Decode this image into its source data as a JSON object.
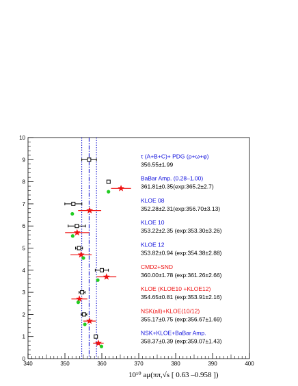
{
  "chart_data": {
    "type": "scatter",
    "title": "",
    "xlabel": "10¹⁰ aμ(ππ,√s [ 0.63 –0.958 ])",
    "ylabel": "",
    "xlim": [
      340,
      400
    ],
    "ylim": [
      0,
      10
    ],
    "x_ticks": [
      "340",
      "350",
      "360",
      "370",
      "380",
      "390",
      "400"
    ],
    "y_ticks": [
      "0",
      "1",
      "2",
      "3",
      "4",
      "5",
      "6",
      "7",
      "8",
      "9",
      "10"
    ],
    "grid": false,
    "reference_lines": [
      {
        "x": 354.56,
        "style": "dotted",
        "color": "#0000cc"
      },
      {
        "x": 356.55,
        "style": "dashdot",
        "color": "#0000cc"
      },
      {
        "x": 358.54,
        "style": "dotted",
        "color": "#0000cc"
      }
    ],
    "series": [
      {
        "marker": "open-square",
        "color": "#000000",
        "points": [
          {
            "y": 9.0,
            "x": 356.55,
            "err": 1.99
          },
          {
            "y": 8.0,
            "x": 361.81,
            "err": 0.35
          },
          {
            "y": 7.0,
            "x": 352.28,
            "err": 2.31
          },
          {
            "y": 6.0,
            "x": 353.22,
            "err": 2.35
          },
          {
            "y": 5.0,
            "x": 353.82,
            "err": 0.94
          },
          {
            "y": 4.0,
            "x": 360.0,
            "err": 1.78
          },
          {
            "y": 3.0,
            "x": 354.65,
            "err": 0.81
          },
          {
            "y": 2.0,
            "x": 355.17,
            "err": 0.75
          },
          {
            "y": 1.0,
            "x": 358.37,
            "err": 0.39
          }
        ]
      },
      {
        "marker": "star",
        "color": "#ee1111",
        "points": [
          {
            "y": 7.7,
            "x": 365.2,
            "err": 2.7
          },
          {
            "y": 6.7,
            "x": 356.7,
            "err": 3.13
          },
          {
            "y": 5.7,
            "x": 353.3,
            "err": 3.26
          },
          {
            "y": 4.7,
            "x": 354.38,
            "err": 2.88
          },
          {
            "y": 3.7,
            "x": 361.26,
            "err": 2.66
          },
          {
            "y": 2.7,
            "x": 353.91,
            "err": 2.16
          },
          {
            "y": 1.7,
            "x": 356.67,
            "err": 1.69
          },
          {
            "y": 0.7,
            "x": 359.07,
            "err": 1.43
          }
        ]
      },
      {
        "marker": "circle",
        "color": "#22cc22",
        "points": [
          {
            "y": 7.55,
            "x": 361.8
          },
          {
            "y": 6.55,
            "x": 352.0
          },
          {
            "y": 5.55,
            "x": 352.1
          },
          {
            "y": 4.55,
            "x": 355.0
          },
          {
            "y": 3.55,
            "x": 358.9
          },
          {
            "y": 2.55,
            "x": 353.6
          },
          {
            "y": 1.55,
            "x": 355.4
          },
          {
            "y": 0.55,
            "x": 359.9
          }
        ]
      }
    ],
    "annotations": [
      {
        "y": 9.0,
        "label": "τ (A+B+C)+ PDG (ρ+ω+φ)",
        "label_color": "#1010dd",
        "value": "356.55±1.99"
      },
      {
        "y": 8.0,
        "label": "BaBar Amp. (0.28–1.00)",
        "label_color": "#1010dd",
        "value": "361.81±0.35(exp:365.2±2.7)"
      },
      {
        "y": 7.0,
        "label": "KLOE 08",
        "label_color": "#1010dd",
        "value": "352.28±2.31(exp:356.70±3.13)"
      },
      {
        "y": 6.0,
        "label": "KLOE 10",
        "label_color": "#1010dd",
        "value": "353.22±2.35 (exp:353.30±3.26)"
      },
      {
        "y": 5.0,
        "label": "KLOE 12",
        "label_color": "#1010dd",
        "value": "353.82±0.94 (exp:354.38±2.88)"
      },
      {
        "y": 4.0,
        "label": "CMD2+SND",
        "label_color": "#ee1111",
        "value": "360.00±1.78 (exp:361.26±2.66)"
      },
      {
        "y": 3.0,
        "label": "KLOE (KLOE10 +KLOE12)",
        "label_color": "#ee1111",
        "value": "354.65±0.81 (exp:353.91±2.16)"
      },
      {
        "y": 2.0,
        "label": "NSK(all)+KLOE(10/12)",
        "label_color": "#ee1111",
        "value": "355.17±0.75 (exp:356.67±1.69)"
      },
      {
        "y": 1.0,
        "label": "NSK+KLOE+BaBar Amp.",
        "label_color": "#1010dd",
        "value": "358.37±0.39 (exp:359.07±1.43)"
      }
    ]
  }
}
